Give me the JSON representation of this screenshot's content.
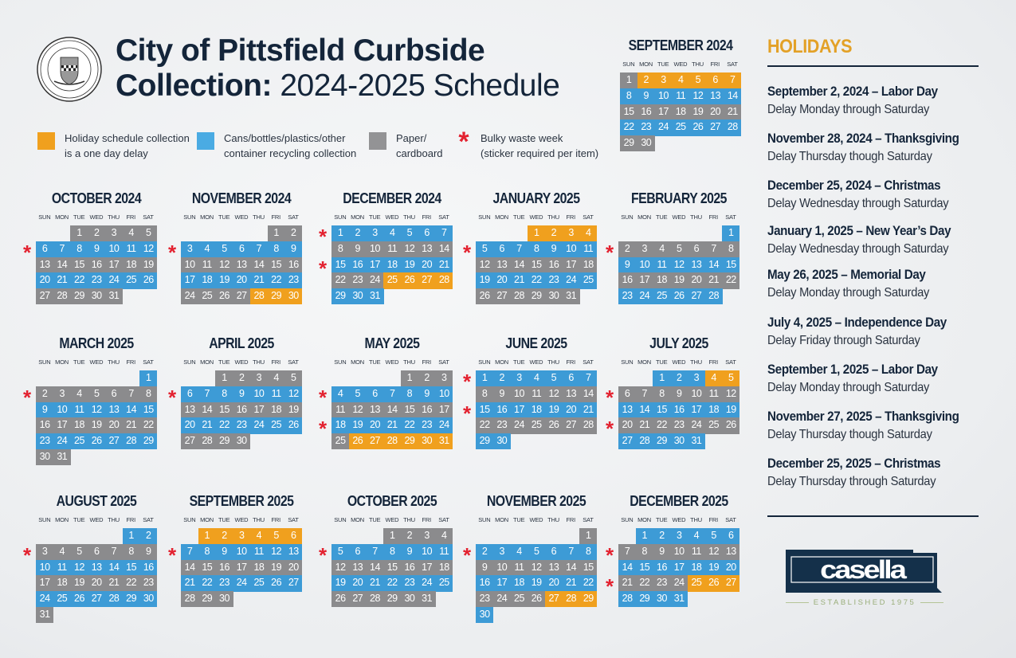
{
  "header": {
    "seal_text": "PITTSFIELD · TOWN 1761 · MASSACHUSETTS · CITY 1891",
    "title_line1": "City of Pittsfield Curbside",
    "title_line2_bold": "Collection:",
    "title_line2_light": "2024-2025 Schedule"
  },
  "colors": {
    "holiday": "#f0a01e",
    "recycling": "#3d9bd6",
    "paper": "#8b8b8d",
    "bulky": "#e32230",
    "navy": "#14253a",
    "holiday_heading": "#e3a127"
  },
  "legend": [
    {
      "type": "holiday",
      "line1": "Holiday schedule collection",
      "line2": "is a one day delay"
    },
    {
      "type": "recycling",
      "line1": "Cans/bottles/plastics/other",
      "line2": "container recycling collection"
    },
    {
      "type": "paper",
      "line1": "Paper/",
      "line2": "cardboard"
    },
    {
      "type": "bulky",
      "icon": "asterisk-icon",
      "line1": "Bulky waste week",
      "line2": "(sticker required per item)"
    }
  ],
  "weekdays": [
    "SUN",
    "MON",
    "TUE",
    "WED",
    "THU",
    "FRI",
    "SAT"
  ],
  "months": [
    {
      "name": "SEPTEMBER 2024",
      "year": 2024,
      "month": 9,
      "first_week": "paper",
      "holiday_days": [
        2,
        3,
        4,
        5,
        6,
        7
      ],
      "bulky_weeks": []
    },
    {
      "name": "OCTOBER 2024",
      "year": 2024,
      "month": 10,
      "first_week": "paper",
      "holiday_days": [],
      "bulky_weeks": [
        1
      ]
    },
    {
      "name": "NOVEMBER 2024",
      "year": 2024,
      "month": 11,
      "first_week": "paper",
      "holiday_days": [
        28,
        29,
        30
      ],
      "bulky_weeks": [
        1
      ]
    },
    {
      "name": "DECEMBER 2024",
      "year": 2024,
      "month": 12,
      "first_week": "recycling",
      "holiday_days": [
        25,
        26,
        27,
        28
      ],
      "bulky_weeks": [
        0,
        2
      ]
    },
    {
      "name": "JANUARY 2025",
      "year": 2025,
      "month": 1,
      "first_week": "paper",
      "holiday_days": [
        1,
        2,
        3,
        4
      ],
      "bulky_weeks": [
        1
      ]
    },
    {
      "name": "FEBRUARY 2025",
      "year": 2025,
      "month": 2,
      "first_week": "recycling",
      "holiday_days": [],
      "bulky_weeks": [
        1
      ]
    },
    {
      "name": "MARCH 2025",
      "year": 2025,
      "month": 3,
      "first_week": "recycling",
      "holiday_days": [],
      "bulky_weeks": [
        1
      ]
    },
    {
      "name": "APRIL 2025",
      "year": 2025,
      "month": 4,
      "first_week": "paper",
      "holiday_days": [],
      "bulky_weeks": [
        1
      ]
    },
    {
      "name": "MAY 2025",
      "year": 2025,
      "month": 5,
      "first_week": "paper",
      "holiday_days": [
        26,
        27,
        28,
        29,
        30,
        31
      ],
      "bulky_weeks": [
        1,
        3
      ]
    },
    {
      "name": "JUNE 2025",
      "year": 2025,
      "month": 6,
      "first_week": "recycling",
      "holiday_days": [],
      "bulky_weeks": [
        0,
        2
      ]
    },
    {
      "name": "JULY 2025",
      "year": 2025,
      "month": 7,
      "first_week": "recycling",
      "holiday_days": [
        4,
        5
      ],
      "bulky_weeks": [
        1,
        3
      ]
    },
    {
      "name": "AUGUST 2025",
      "year": 2025,
      "month": 8,
      "first_week": "recycling",
      "holiday_days": [],
      "bulky_weeks": [
        1
      ]
    },
    {
      "name": "SEPTEMBER 2025",
      "year": 2025,
      "month": 9,
      "first_week": "paper",
      "holiday_days": [
        1,
        2,
        3,
        4,
        5,
        6
      ],
      "bulky_weeks": [
        1
      ]
    },
    {
      "name": "OCTOBER 2025",
      "year": 2025,
      "month": 10,
      "first_week": "paper",
      "holiday_days": [],
      "bulky_weeks": [
        1
      ]
    },
    {
      "name": "NOVEMBER 2025",
      "year": 2025,
      "month": 11,
      "first_week": "paper",
      "holiday_days": [
        27,
        28,
        29
      ],
      "bulky_weeks": [
        1
      ]
    },
    {
      "name": "DECEMBER 2025",
      "year": 2025,
      "month": 12,
      "first_week": "recycling",
      "holiday_days": [
        25,
        26,
        27
      ],
      "bulky_weeks": [
        1,
        3
      ]
    }
  ],
  "holidays": {
    "heading": "HOLIDAYS",
    "items": [
      {
        "title": "September 2, 2024 – Labor Day",
        "note": "Delay Monday through Saturday"
      },
      {
        "title": "November 28, 2024 – Thanksgiving",
        "note": "Delay Thursday though Saturday"
      },
      {
        "title": "December 25, 2024 – Christmas",
        "note": "Delay Wednesday through Saturday"
      },
      {
        "title": "January 1, 2025 – New Year’s Day",
        "note": "Delay Wednesday through Saturday"
      },
      {
        "title": "May 26, 2025 – Memorial Day",
        "note": "Delay Monday through Saturday"
      },
      {
        "title": "July 4, 2025 – Independence Day",
        "note": "Delay Friday through Saturday"
      },
      {
        "title": "September 1, 2025 – Labor Day",
        "note": "Delay Monday through Saturday"
      },
      {
        "title": "November 27, 2025 – Thanksgiving",
        "note": "Delay Thursday though Saturday"
      },
      {
        "title": "December 25, 2025 – Christmas",
        "note": "Delay Thursday through Saturday"
      }
    ]
  },
  "logo": {
    "brand": "casella",
    "tagline": "ESTABLISHED 1975"
  }
}
